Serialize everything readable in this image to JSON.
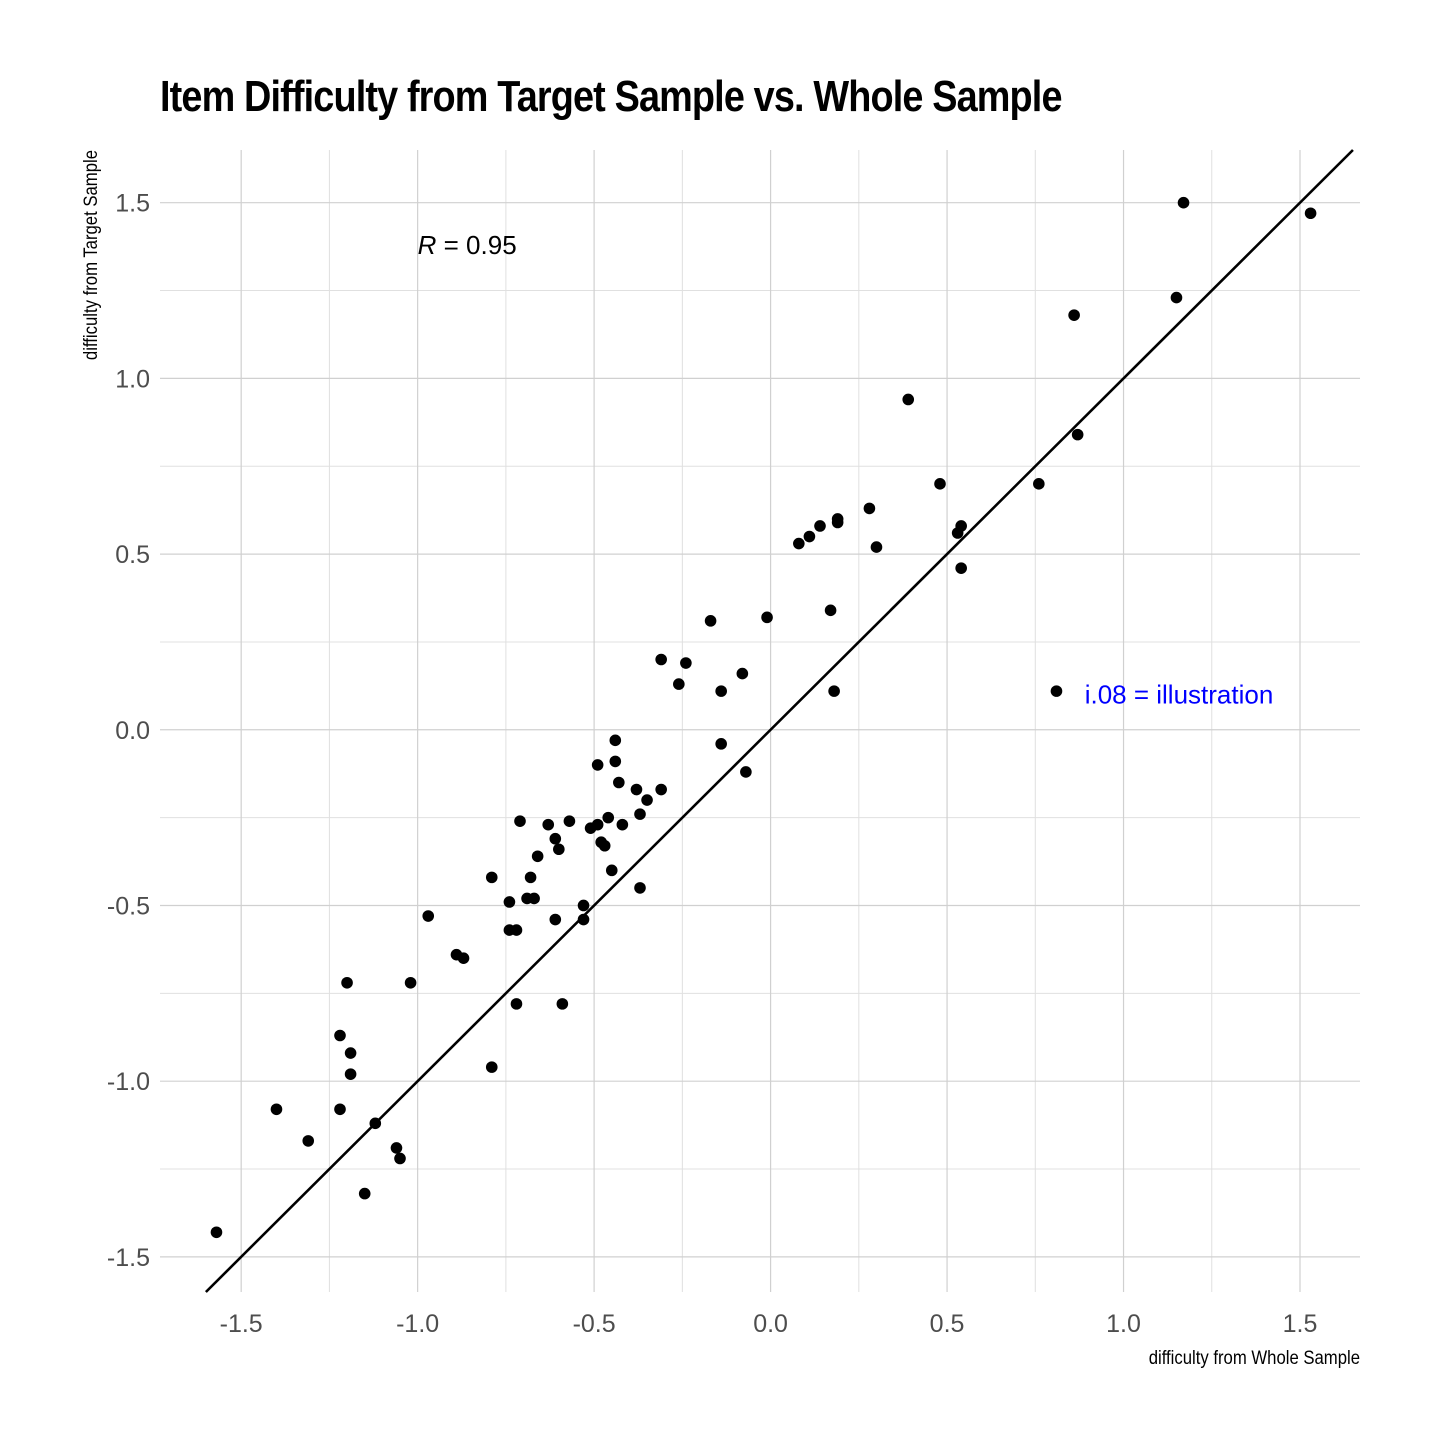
{
  "chart_data": {
    "type": "scatter",
    "title": "Item Difficulty from Target Sample vs. Whole Sample",
    "xlabel": "difficulty from Whole Sample",
    "ylabel": "difficulty from Target Sample",
    "xlim": [
      -1.73,
      1.67
    ],
    "ylim": [
      -1.6,
      1.65
    ],
    "x_ticks": [
      "-1.5",
      "-1.0",
      "-0.5",
      "0.0",
      "0.5",
      "1.0",
      "1.5"
    ],
    "y_ticks": [
      "-1.5",
      "-1.0",
      "-0.5",
      "0.0",
      "0.5",
      "1.0",
      "1.5"
    ],
    "grid": true,
    "reference_line": {
      "type": "identity",
      "slope": 1,
      "intercept": 0,
      "color": "#000000"
    },
    "annotations": [
      {
        "id": "r",
        "text_italic": "R",
        "text": " = 0.95",
        "x": -1.0,
        "y": 1.38,
        "color": "#000000"
      },
      {
        "id": "label",
        "text": "i.08 = illustration",
        "x": 0.89,
        "y": 0.1,
        "color": "#0000ff"
      }
    ],
    "point_color": "#000000",
    "points": [
      [
        -1.57,
        -1.43
      ],
      [
        -1.4,
        -1.08
      ],
      [
        -1.31,
        -1.17
      ],
      [
        -1.22,
        -0.87
      ],
      [
        -1.22,
        -1.08
      ],
      [
        -1.2,
        -0.72
      ],
      [
        -1.19,
        -0.92
      ],
      [
        -1.19,
        -0.98
      ],
      [
        -1.15,
        -1.32
      ],
      [
        -1.12,
        -1.12
      ],
      [
        -1.06,
        -1.19
      ],
      [
        -1.05,
        -1.22
      ],
      [
        -1.02,
        -0.72
      ],
      [
        -0.97,
        -0.53
      ],
      [
        -0.89,
        -0.64
      ],
      [
        -0.87,
        -0.65
      ],
      [
        -0.79,
        -0.42
      ],
      [
        -0.79,
        -0.96
      ],
      [
        -0.74,
        -0.49
      ],
      [
        -0.74,
        -0.57
      ],
      [
        -0.72,
        -0.57
      ],
      [
        -0.72,
        -0.78
      ],
      [
        -0.71,
        -0.26
      ],
      [
        -0.69,
        -0.48
      ],
      [
        -0.68,
        -0.42
      ],
      [
        -0.67,
        -0.48
      ],
      [
        -0.66,
        -0.36
      ],
      [
        -0.63,
        -0.27
      ],
      [
        -0.61,
        -0.31
      ],
      [
        -0.61,
        -0.54
      ],
      [
        -0.6,
        -0.34
      ],
      [
        -0.59,
        -0.78
      ],
      [
        -0.57,
        -0.26
      ],
      [
        -0.53,
        -0.5
      ],
      [
        -0.53,
        -0.54
      ],
      [
        -0.51,
        -0.28
      ],
      [
        -0.49,
        -0.27
      ],
      [
        -0.49,
        -0.1
      ],
      [
        -0.48,
        -0.32
      ],
      [
        -0.47,
        -0.33
      ],
      [
        -0.46,
        -0.25
      ],
      [
        -0.45,
        -0.4
      ],
      [
        -0.44,
        -0.09
      ],
      [
        -0.44,
        -0.03
      ],
      [
        -0.43,
        -0.15
      ],
      [
        -0.42,
        -0.27
      ],
      [
        -0.38,
        -0.17
      ],
      [
        -0.37,
        -0.24
      ],
      [
        -0.37,
        -0.45
      ],
      [
        -0.35,
        -0.2
      ],
      [
        -0.31,
        -0.17
      ],
      [
        -0.31,
        0.2
      ],
      [
        -0.26,
        0.13
      ],
      [
        -0.24,
        0.19
      ],
      [
        -0.17,
        0.31
      ],
      [
        -0.14,
        0.11
      ],
      [
        -0.14,
        -0.04
      ],
      [
        -0.08,
        0.16
      ],
      [
        -0.07,
        -0.12
      ],
      [
        -0.01,
        0.32
      ],
      [
        0.08,
        0.53
      ],
      [
        0.11,
        0.55
      ],
      [
        0.14,
        0.58
      ],
      [
        0.17,
        0.34
      ],
      [
        0.18,
        0.11
      ],
      [
        0.19,
        0.6
      ],
      [
        0.19,
        0.59
      ],
      [
        0.28,
        0.63
      ],
      [
        0.3,
        0.52
      ],
      [
        0.39,
        0.94
      ],
      [
        0.48,
        0.7
      ],
      [
        0.53,
        0.56
      ],
      [
        0.54,
        0.58
      ],
      [
        0.54,
        0.46
      ],
      [
        0.76,
        0.7
      ],
      [
        0.81,
        0.11
      ],
      [
        0.86,
        1.18
      ],
      [
        0.87,
        0.84
      ],
      [
        1.15,
        1.23
      ],
      [
        1.17,
        1.5
      ],
      [
        1.53,
        1.47
      ]
    ]
  }
}
